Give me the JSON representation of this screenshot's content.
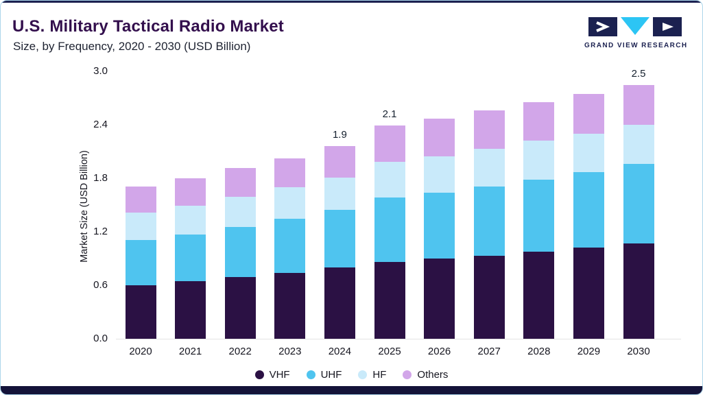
{
  "header": {
    "title": "U.S. Military Tactical Radio Market",
    "subtitle": "Size, by Frequency, 2020 - 2030 (USD Billion)",
    "brand": "GRAND VIEW RESEARCH"
  },
  "colors": {
    "title_text": "#330F4D",
    "accent_navy": "#1B2150",
    "bottom_bar": "#141339",
    "card_border": "#ACD6EA",
    "logo_cyan": "#2CC5F4"
  },
  "chart_data": {
    "type": "bar",
    "stacked": true,
    "title": "U.S. Military Tactical Radio Market",
    "subtitle": "Size, by Frequency, 2020 - 2030 (USD Billion)",
    "xlabel": "",
    "ylabel": "Market Size (USD Billion)",
    "ylim": [
      0.0,
      3.0
    ],
    "yticks": [
      "0.0",
      "0.6",
      "1.2",
      "1.8",
      "2.4",
      "3.0"
    ],
    "grid": false,
    "legend_position": "bottom",
    "categories": [
      "2020",
      "2021",
      "2022",
      "2023",
      "2024",
      "2025",
      "2026",
      "2027",
      "2028",
      "2029",
      "2030"
    ],
    "series": [
      {
        "name": "VHF",
        "color": "#2B1144",
        "values": [
          0.53,
          0.57,
          0.61,
          0.65,
          0.7,
          0.76,
          0.79,
          0.82,
          0.86,
          0.9,
          0.94
        ]
      },
      {
        "name": "UHF",
        "color": "#4FC4EF",
        "values": [
          0.44,
          0.46,
          0.49,
          0.53,
          0.57,
          0.63,
          0.65,
          0.68,
          0.71,
          0.74,
          0.78
        ]
      },
      {
        "name": "HF",
        "color": "#C9EAFA",
        "values": [
          0.27,
          0.28,
          0.3,
          0.31,
          0.32,
          0.35,
          0.36,
          0.37,
          0.38,
          0.38,
          0.39
        ]
      },
      {
        "name": "Others",
        "color": "#D2A6E9",
        "values": [
          0.26,
          0.27,
          0.28,
          0.29,
          0.31,
          0.36,
          0.37,
          0.38,
          0.38,
          0.39,
          0.39
        ]
      }
    ],
    "totals": [
      1.5,
      1.58,
      1.68,
      1.78,
      1.9,
      2.1,
      2.17,
      2.25,
      2.33,
      2.41,
      2.5
    ],
    "annotations": [
      {
        "category": "2024",
        "text": "1.9"
      },
      {
        "category": "2025",
        "text": "2.1"
      },
      {
        "category": "2030",
        "text": "2.5"
      }
    ]
  }
}
